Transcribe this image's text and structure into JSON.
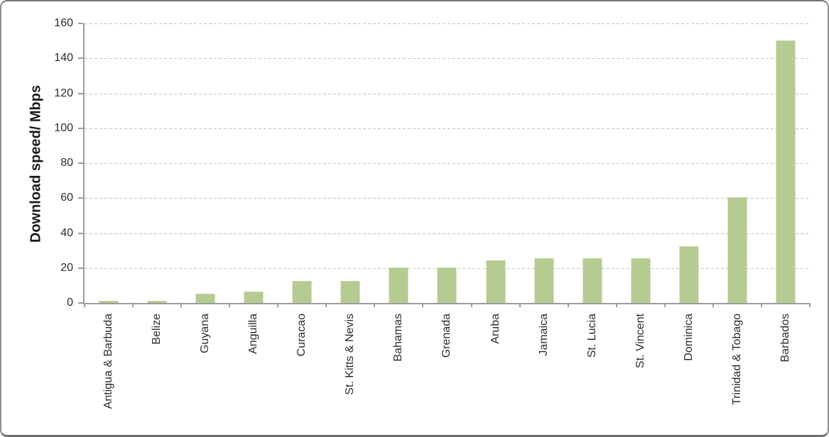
{
  "chart_data": {
    "type": "bar",
    "title": "",
    "xlabel": "",
    "ylabel": "Download speed/ Mbps",
    "categories": [
      "Antigua & Barbuda",
      "Belize",
      "Guyana",
      "Anguilla",
      "Curacao",
      "St. Kitts & Nevis",
      "Bahamas",
      "Grenada",
      "Aruba",
      "Jamaica",
      "St. Lucia",
      "St. Vincent",
      "Dominica",
      "Trinidad & Tobago",
      "Barbados"
    ],
    "values": [
      1,
      1,
      5,
      6,
      12,
      12,
      20,
      20,
      24,
      25,
      25,
      25,
      32,
      60,
      150
    ],
    "ylim": [
      0,
      160
    ],
    "yticks": [
      0,
      20,
      40,
      60,
      80,
      100,
      120,
      140,
      160
    ],
    "grid": "horizontal-dashed",
    "legend": "none",
    "bar_color": "#b6cb92",
    "axis_color": "#9c9c9c",
    "gridline_color": "#c3c3c3"
  }
}
